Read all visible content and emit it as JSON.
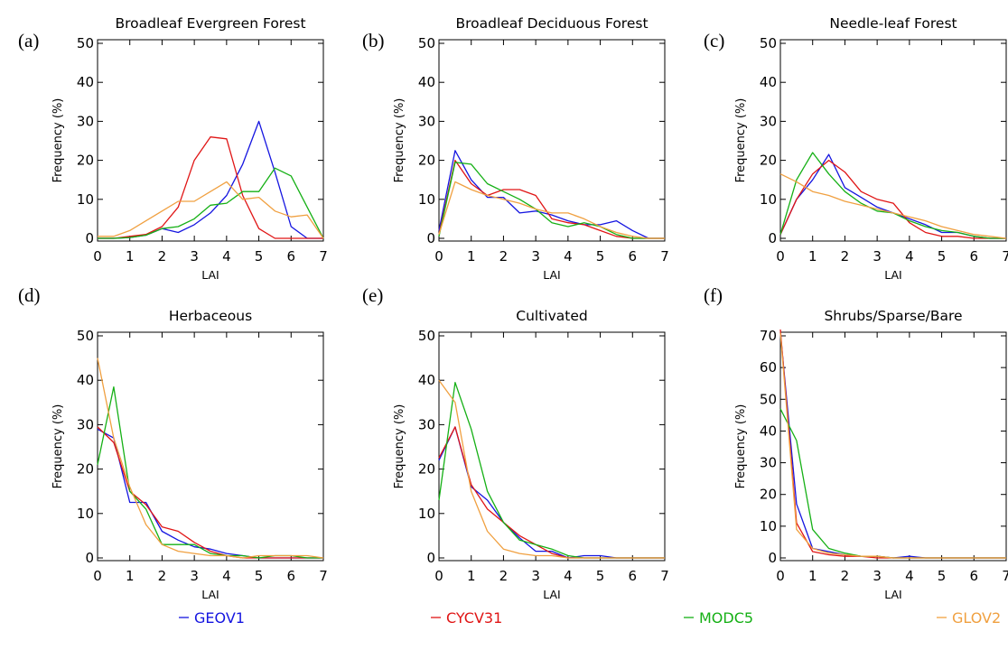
{
  "colors": {
    "GEOV1": "#1515e0",
    "CYCV31": "#e01515",
    "MODC5": "#15b015",
    "GLOV2": "#f0a040"
  },
  "legend": [
    "GEOV1",
    "CYCV31",
    "MODC5",
    "GLOV2"
  ],
  "chart_data": [
    {
      "type": "line",
      "panel": "(a)",
      "title": "Broadleaf Evergreen Forest",
      "xlabel": "LAI",
      "ylabel": "Frequency (%)",
      "xlim": [
        0,
        7
      ],
      "ylim": [
        0,
        50
      ],
      "xticks": [
        0,
        1,
        2,
        3,
        4,
        5,
        6,
        7
      ],
      "yticks": [
        0,
        10,
        20,
        30,
        40,
        50
      ],
      "x": [
        0,
        0.5,
        1,
        1.5,
        2,
        2.5,
        3,
        3.5,
        4,
        4.5,
        5,
        5.5,
        6,
        6.5,
        7
      ],
      "series": [
        {
          "name": "GEOV1",
          "values": [
            0,
            0,
            0.2,
            0.8,
            2.5,
            1.5,
            3.5,
            6.5,
            11,
            19,
            30,
            17,
            3,
            0,
            0
          ]
        },
        {
          "name": "CYCV31",
          "values": [
            0,
            0,
            0.5,
            1,
            3,
            8,
            20,
            26,
            25.5,
            11,
            2.5,
            0,
            0,
            0,
            0
          ]
        },
        {
          "name": "MODC5",
          "values": [
            0,
            0,
            0.2,
            0.8,
            2.5,
            3,
            5,
            8.5,
            9,
            12,
            12,
            18,
            16,
            8,
            0
          ]
        },
        {
          "name": "GLOV2",
          "values": [
            0.5,
            0.5,
            2,
            4.5,
            7,
            9.5,
            9.5,
            12,
            14.5,
            10,
            10.5,
            7,
            5.5,
            6,
            0
          ]
        }
      ]
    },
    {
      "type": "line",
      "panel": "(b)",
      "title": "Broadleaf Deciduous Forest",
      "xlabel": "LAI",
      "ylabel": "Frequency (%)",
      "xlim": [
        0,
        7
      ],
      "ylim": [
        0,
        50
      ],
      "xticks": [
        0,
        1,
        2,
        3,
        4,
        5,
        6,
        7
      ],
      "yticks": [
        0,
        10,
        20,
        30,
        40,
        50
      ],
      "x": [
        0,
        0.5,
        1,
        1.5,
        2,
        2.5,
        3,
        3.5,
        4,
        4.5,
        5,
        5.5,
        6,
        6.5,
        7
      ],
      "series": [
        {
          "name": "GEOV1",
          "values": [
            2,
            22.5,
            15,
            10.5,
            10.5,
            6.5,
            7,
            6,
            4.5,
            3.5,
            3.5,
            4.5,
            2,
            0,
            0
          ]
        },
        {
          "name": "CYCV31",
          "values": [
            1,
            20,
            14,
            11,
            12.5,
            12.5,
            11,
            5,
            4,
            3.5,
            2,
            0.5,
            0,
            0,
            0
          ]
        },
        {
          "name": "MODC5",
          "values": [
            0.5,
            19.5,
            19,
            14,
            12,
            10,
            7.5,
            4,
            3,
            4,
            3,
            1,
            0,
            0,
            0
          ]
        },
        {
          "name": "GLOV2",
          "values": [
            1,
            14.5,
            12.5,
            11,
            10,
            9,
            7.5,
            6.5,
            6.5,
            5,
            3,
            1.5,
            0.5,
            0,
            0
          ]
        }
      ]
    },
    {
      "type": "line",
      "panel": "(c)",
      "title": "Needle-leaf Forest",
      "xlabel": "LAI",
      "ylabel": "Frequency (%)",
      "xlim": [
        0,
        7
      ],
      "ylim": [
        0,
        50
      ],
      "xticks": [
        0,
        1,
        2,
        3,
        4,
        5,
        6,
        7
      ],
      "yticks": [
        0,
        10,
        20,
        30,
        40,
        50
      ],
      "x": [
        0,
        0.5,
        1,
        1.5,
        2,
        2.5,
        3,
        3.5,
        4,
        4.5,
        5,
        5.5,
        6,
        6.5,
        7
      ],
      "series": [
        {
          "name": "GEOV1",
          "values": [
            1,
            10,
            15,
            21.5,
            13,
            10.5,
            8,
            6.5,
            5,
            3.5,
            1.5,
            1.5,
            0.5,
            0,
            0
          ]
        },
        {
          "name": "CYCV31",
          "values": [
            1,
            10,
            16.5,
            20,
            17,
            12,
            10,
            9,
            4,
            1.5,
            0.5,
            0.5,
            0,
            0,
            0
          ]
        },
        {
          "name": "MODC5",
          "values": [
            1,
            15,
            22,
            16.5,
            12,
            9,
            7,
            6.5,
            4.5,
            3,
            2,
            1.5,
            0.5,
            0,
            0
          ]
        },
        {
          "name": "GLOV2",
          "values": [
            16.5,
            14.5,
            12,
            11,
            9.5,
            8.5,
            7.5,
            6.5,
            5.5,
            4.5,
            3,
            2,
            1,
            0.5,
            0
          ]
        }
      ]
    },
    {
      "type": "line",
      "panel": "(d)",
      "title": "Herbaceous",
      "xlabel": "LAI",
      "ylabel": "Frequency (%)",
      "xlim": [
        0,
        7
      ],
      "ylim": [
        0,
        50
      ],
      "xticks": [
        0,
        1,
        2,
        3,
        4,
        5,
        6,
        7
      ],
      "yticks": [
        0,
        10,
        20,
        30,
        40,
        50
      ],
      "x": [
        0,
        0.5,
        1,
        1.5,
        2,
        2.5,
        3,
        3.5,
        4,
        4.5,
        5,
        5.5,
        6,
        6.5,
        7
      ],
      "series": [
        {
          "name": "GEOV1",
          "values": [
            29,
            27,
            12.5,
            12.5,
            6,
            4,
            2.5,
            2,
            1,
            0.5,
            0,
            0,
            0,
            0,
            0
          ]
        },
        {
          "name": "CYCV31",
          "values": [
            29.5,
            26,
            15,
            12,
            7,
            6,
            3.5,
            1.5,
            0.5,
            0,
            0,
            0,
            0,
            0,
            0
          ]
        },
        {
          "name": "MODC5",
          "values": [
            21,
            38.5,
            15,
            11,
            3,
            3,
            3,
            1,
            0.5,
            0.5,
            0,
            0.5,
            0.5,
            0,
            0
          ]
        },
        {
          "name": "GLOV2",
          "values": [
            45,
            27,
            16,
            7.5,
            3,
            1.5,
            1,
            0.5,
            0.5,
            0,
            0.5,
            0.5,
            0.5,
            0.5,
            0
          ]
        }
      ]
    },
    {
      "type": "line",
      "panel": "(e)",
      "title": "Cultivated",
      "xlabel": "LAI",
      "ylabel": "Frequency (%)",
      "xlim": [
        0,
        7
      ],
      "ylim": [
        0,
        50
      ],
      "xticks": [
        0,
        1,
        2,
        3,
        4,
        5,
        6,
        7
      ],
      "yticks": [
        0,
        10,
        20,
        30,
        40,
        50
      ],
      "x": [
        0,
        0.5,
        1,
        1.5,
        2,
        2.5,
        3,
        3.5,
        4,
        4.5,
        5,
        5.5,
        6,
        6.5,
        7
      ],
      "series": [
        {
          "name": "GEOV1",
          "values": [
            22,
            29.5,
            16,
            13,
            8,
            4.5,
            1.5,
            1.5,
            0,
            0.5,
            0.5,
            0,
            0,
            0,
            0
          ]
        },
        {
          "name": "CYCV31",
          "values": [
            22.5,
            29.5,
            16.5,
            11,
            8,
            5,
            3,
            1,
            0,
            0,
            0,
            0,
            0,
            0,
            0
          ]
        },
        {
          "name": "MODC5",
          "values": [
            13,
            39.5,
            29,
            15,
            8,
            4,
            3,
            2,
            0.5,
            0,
            0,
            0,
            0,
            0,
            0
          ]
        },
        {
          "name": "GLOV2",
          "values": [
            40,
            35,
            15,
            6,
            2,
            1,
            0.5,
            0.5,
            0,
            0,
            0,
            0,
            0,
            0,
            0
          ]
        }
      ]
    },
    {
      "type": "line",
      "panel": "(f)",
      "title": "Shrubs/Sparse/Bare",
      "xlabel": "LAI",
      "ylabel": "Frequency (%)",
      "xlim": [
        0,
        7
      ],
      "ylim": [
        0,
        70
      ],
      "xticks": [
        0,
        1,
        2,
        3,
        4,
        5,
        6,
        7
      ],
      "yticks": [
        0,
        10,
        20,
        30,
        40,
        50,
        60,
        70
      ],
      "x": [
        0,
        0.5,
        1,
        1.5,
        2,
        2.5,
        3,
        3.5,
        4,
        4.5,
        5,
        5.5,
        6,
        6.5,
        7
      ],
      "series": [
        {
          "name": "GEOV1",
          "values": [
            71,
            17,
            3,
            2,
            1,
            0.5,
            0.5,
            0,
            0.5,
            0,
            0,
            0,
            0,
            0,
            0
          ]
        },
        {
          "name": "CYCV31",
          "values": [
            72,
            11,
            2,
            1,
            0.5,
            0.5,
            0,
            0,
            0,
            0,
            0,
            0,
            0,
            0,
            0
          ]
        },
        {
          "name": "MODC5",
          "values": [
            47,
            37,
            9,
            3,
            1.5,
            0.5,
            0.5,
            0,
            0,
            0,
            0,
            0,
            0,
            0,
            0
          ]
        },
        {
          "name": "GLOV2",
          "values": [
            71,
            9,
            3,
            1.5,
            1,
            0.5,
            0.5,
            0,
            0,
            0,
            0,
            0,
            0,
            0,
            0
          ]
        }
      ]
    }
  ]
}
